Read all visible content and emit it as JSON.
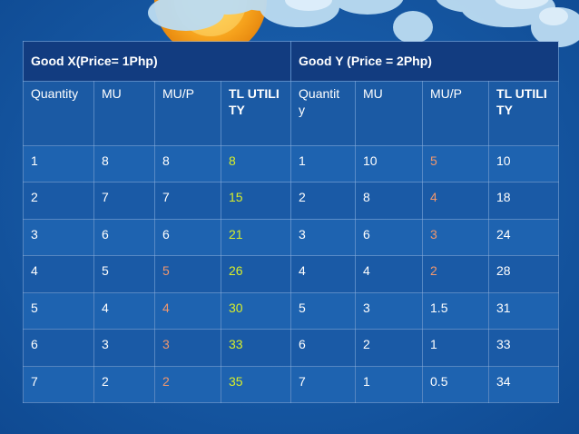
{
  "table": {
    "good_x_title": "Good X(Price= 1Php)",
    "good_y_title": "Good Y (Price = 2Php)",
    "columns": [
      "Quantity",
      "MU",
      "MU/P",
      "TL UTILITY",
      "Quantit y",
      "MU",
      "MU/P",
      "TL UTILITY"
    ],
    "rows": [
      [
        "1",
        "8",
        "8",
        "8",
        "1",
        "10",
        "5",
        "10"
      ],
      [
        "2",
        "7",
        "7",
        "15",
        "2",
        "8",
        "4",
        "18"
      ],
      [
        "3",
        "6",
        "6",
        "21",
        "3",
        "6",
        "3",
        "24"
      ],
      [
        "4",
        "5",
        "5",
        "26",
        "4",
        "4",
        "2",
        "28"
      ],
      [
        "5",
        "4",
        "4",
        "30",
        "5",
        "3",
        "1.5",
        "31"
      ],
      [
        "6",
        "3",
        "3",
        "33",
        "6",
        "2",
        "1",
        "33"
      ],
      [
        "7",
        "2",
        "2",
        "35",
        "7",
        "1",
        "0.5",
        "34"
      ]
    ]
  },
  "colors": {
    "background": "#175aa6",
    "header_band": "#123c80",
    "highlight_yellow": "#d8ee2a",
    "highlight_orange": "#f0976e"
  }
}
